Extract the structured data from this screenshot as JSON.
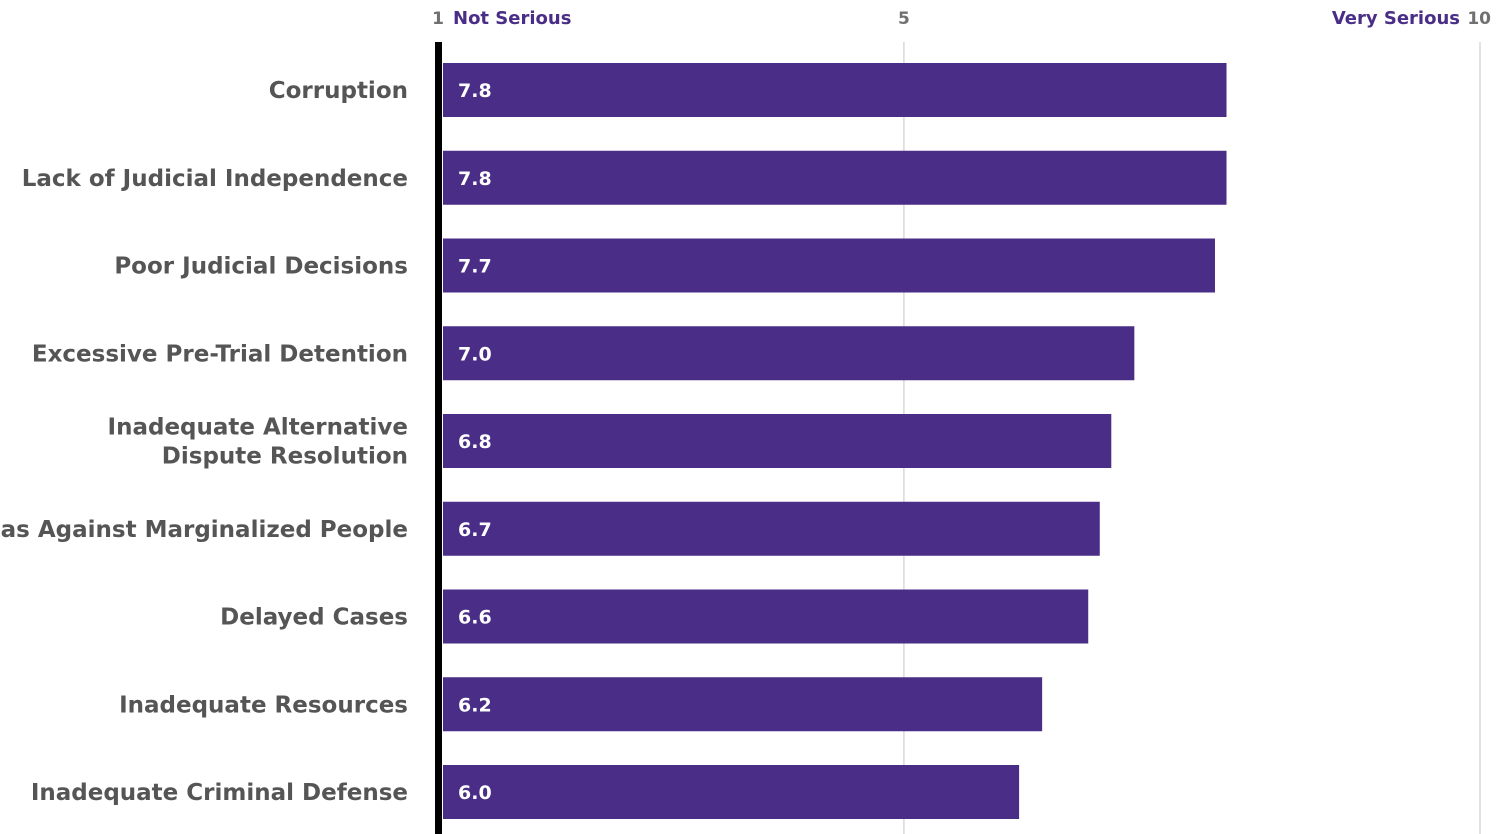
{
  "chart_data": {
    "type": "bar",
    "orientation": "horizontal",
    "categories": [
      "Corruption",
      "Lack of Judicial Independence",
      "Poor Judicial Decisions",
      "Excessive Pre-Trial Detention",
      "Inadequate Alternative Dispute Resolution",
      "Bias Against Marginalized People",
      "Delayed Cases",
      "Inadequate Resources",
      "Inadequate Criminal Defense"
    ],
    "category_label_lines": [
      [
        "Corruption"
      ],
      [
        "Lack of Judicial Independence"
      ],
      [
        "Poor Judicial Decisions"
      ],
      [
        "Excessive Pre-Trial Detention"
      ],
      [
        "Inadequate Alternative",
        "Dispute Resolution"
      ],
      [
        "Bias Against Marginalized People"
      ],
      [
        "Delayed Cases"
      ],
      [
        "Inadequate Resources"
      ],
      [
        "Inadequate Criminal Defense"
      ]
    ],
    "values": [
      7.8,
      7.8,
      7.7,
      7.0,
      6.8,
      6.7,
      6.6,
      6.2,
      6.0
    ],
    "value_labels": [
      "7.8",
      "7.8",
      "7.7",
      "7.0",
      "6.8",
      "6.7",
      "6.6",
      "6.2",
      "6.0"
    ],
    "xlim": [
      1,
      10
    ],
    "ticks": [
      {
        "value": 1,
        "label": "1"
      },
      {
        "value": 5,
        "label": "5"
      },
      {
        "value": 10,
        "label": "10"
      }
    ],
    "axis_end_labels": {
      "low": "Not Serious",
      "high": "Very Serious"
    },
    "grid": true,
    "title": "",
    "xlabel": "",
    "ylabel": ""
  },
  "colors": {
    "bar": "#4a2d86",
    "accent_text": "#4a2d86",
    "tick_text": "#707070",
    "category_text": "#555555",
    "gridline": "#d9d9d9",
    "axis_line": "#000000"
  }
}
